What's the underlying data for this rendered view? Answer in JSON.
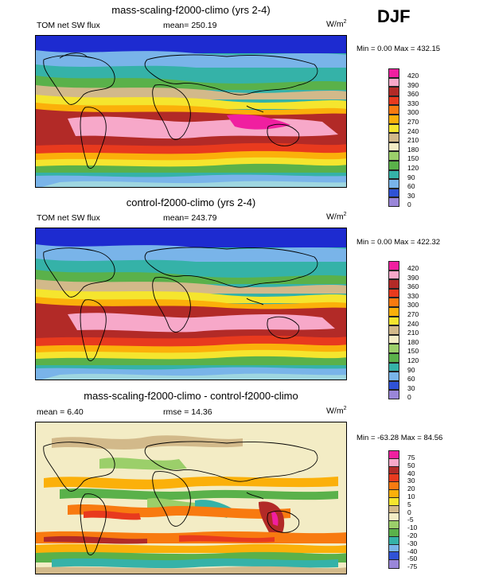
{
  "season": "DJF",
  "panels": [
    {
      "title": "mass-scaling-f2000-climo (yrs 2-4)",
      "left_label": "TOM net SW flux",
      "center_label": "mean= 250.19",
      "units": "W/m",
      "units_sup": "2",
      "minmax": "Min =   0.00 Max = 432.15",
      "levels": [
        "420",
        "390",
        "360",
        "330",
        "300",
        "270",
        "240",
        "210",
        "180",
        "150",
        "120",
        "90",
        "60",
        "30",
        "0"
      ],
      "colors": [
        "#f01fa0",
        "#f7a8c9",
        "#b22a27",
        "#e83a1e",
        "#f87a10",
        "#fbb00a",
        "#f5e52e",
        "#d2b98a",
        "#f3ecc5",
        "#9bcf6a",
        "#5ab14a",
        "#35b2a8",
        "#79b4e9",
        "#2f52d6",
        "#9a86d9"
      ]
    },
    {
      "title": "control-f2000-climo (yrs 2-4)",
      "left_label": "TOM net SW flux",
      "center_label": "mean= 243.79",
      "units": "W/m",
      "units_sup": "2",
      "minmax": "Min =   0.00 Max = 422.32",
      "levels": [
        "420",
        "390",
        "360",
        "330",
        "300",
        "270",
        "240",
        "210",
        "180",
        "150",
        "120",
        "90",
        "60",
        "30",
        "0"
      ],
      "colors": [
        "#f01fa0",
        "#f7a8c9",
        "#b22a27",
        "#e83a1e",
        "#f87a10",
        "#fbb00a",
        "#f5e52e",
        "#d2b98a",
        "#f3ecc5",
        "#9bcf6a",
        "#5ab14a",
        "#35b2a8",
        "#79b4e9",
        "#2f52d6",
        "#9a86d9"
      ]
    },
    {
      "title": "mass-scaling-f2000-climo - control-f2000-climo",
      "left_label": "mean =   6.40",
      "center_label": "rmse =  14.36",
      "units": "W/m",
      "units_sup": "2",
      "minmax": "Min = -63.28 Max =  84.56",
      "levels": [
        "75",
        "50",
        "40",
        "30",
        "20",
        "10",
        "5",
        "0",
        "-5",
        "-10",
        "-20",
        "-30",
        "-40",
        "-50",
        "-75"
      ],
      "colors": [
        "#f01fa0",
        "#f7a8c9",
        "#b22a27",
        "#e83a1e",
        "#f87a10",
        "#fbb00a",
        "#f5e52e",
        "#d2b98a",
        "#f3ecc5",
        "#9bcf6a",
        "#5ab14a",
        "#35b2a8",
        "#79b4e9",
        "#2f52d6",
        "#9a86d9"
      ]
    }
  ]
}
